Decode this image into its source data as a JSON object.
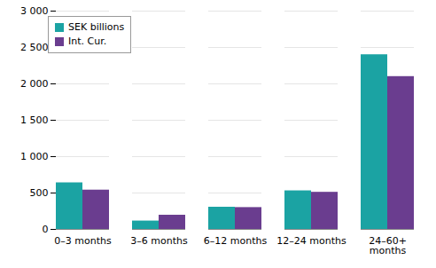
{
  "chart_data": {
    "type": "bar",
    "categories": [
      "0–3 months",
      "3–6 months",
      "6–12 months",
      "12–24 months",
      "24–60+\nmonths"
    ],
    "series": [
      {
        "name": "SEK billions",
        "color": "#1ba3a3",
        "values": [
          640,
          115,
          305,
          530,
          2400
        ]
      },
      {
        "name": "Int. Cur.",
        "color": "#6a3d8f",
        "values": [
          540,
          195,
          300,
          510,
          2100
        ]
      }
    ],
    "ylim": [
      0,
      3000
    ],
    "yticks": [
      0,
      500,
      {
        "value": 1000,
        "label": "1 000"
      },
      {
        "value": 1500,
        "label": "1 500"
      },
      {
        "value": 2000,
        "label": "2 000"
      },
      {
        "value": 2500,
        "label": "2 500"
      },
      {
        "value": 3000,
        "label": "3 000"
      }
    ],
    "grid": true,
    "legend": "upper left"
  }
}
